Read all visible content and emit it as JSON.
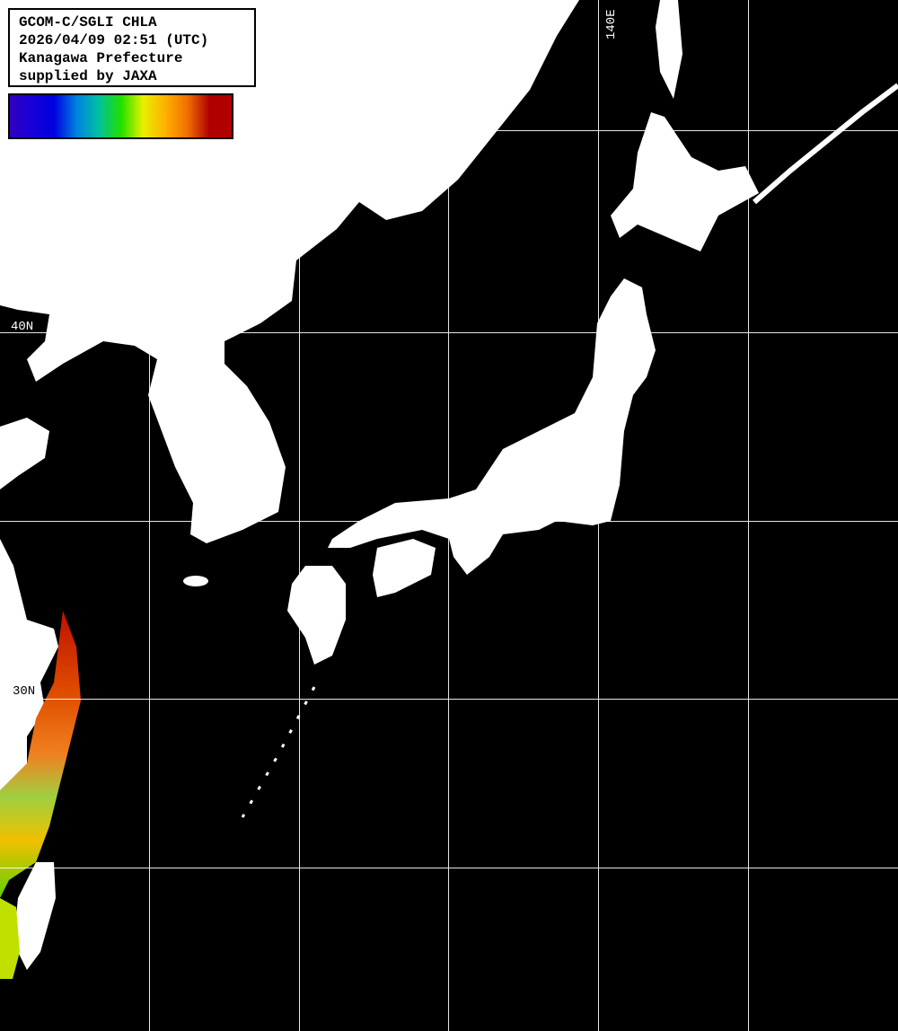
{
  "header": {
    "lines": [
      "GCOM-C/SGLI CHLA",
      "2026/04/09 02:51 (UTC)",
      "Kanagawa Prefecture",
      "supplied by JAXA"
    ]
  },
  "colorbar": {
    "colors": [
      "#3000c0",
      "#1800d8",
      "#0000e0",
      "#0080e0",
      "#00c0a0",
      "#20e000",
      "#e8f000",
      "#ffb000",
      "#f07000",
      "#b00000",
      "#b00000"
    ]
  },
  "grid": {
    "lon_label": "140E",
    "lat_labels": [
      "40N",
      "30N"
    ]
  },
  "colors": {
    "land": "#ffffff",
    "sea": "#000000",
    "grid": "#ffffff"
  }
}
